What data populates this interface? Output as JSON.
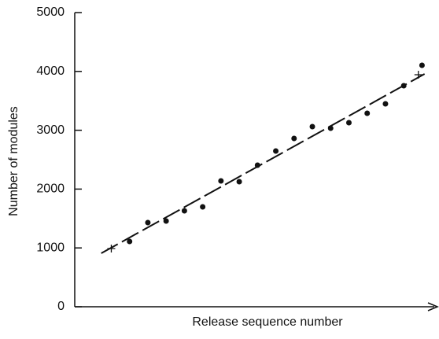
{
  "chart_data": {
    "type": "scatter",
    "x_label": "Release sequence number",
    "y_label": "Number of modules",
    "x": [
      1,
      2,
      3,
      4,
      5,
      6,
      7,
      8,
      9,
      10,
      11,
      12,
      13,
      14,
      15,
      16,
      17
    ],
    "values": [
      1110,
      1430,
      1457,
      1631,
      1698,
      2139,
      2126,
      2406,
      2647,
      2861,
      3061,
      3035,
      3128,
      3289,
      3449,
      3757,
      4104
    ],
    "color": "#111111",
    "fit_line": {
      "x": [
        -0.55,
        17.14
      ],
      "values": [
        909,
        3957
      ],
      "color": "#111111"
    },
    "fit_points": {
      "x": [
        0,
        16.8
      ],
      "values": [
        989,
        3944
      ]
    },
    "xlim": [
      -2,
      17.8
    ],
    "ylim": [
      0,
      5000
    ],
    "yticks": [
      0,
      1000,
      2000,
      3000,
      4000,
      5000
    ]
  }
}
